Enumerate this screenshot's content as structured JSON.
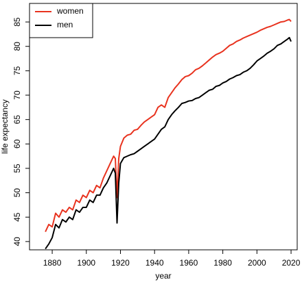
{
  "chart_data": {
    "type": "line",
    "x_label": "year",
    "y_label": "life expectancy",
    "x": [
      1876,
      1878,
      1880,
      1882,
      1884,
      1886,
      1888,
      1890,
      1892,
      1894,
      1896,
      1898,
      1900,
      1902,
      1904,
      1906,
      1908,
      1910,
      1912,
      1914,
      1916,
      1917,
      1918,
      1919,
      1920,
      1922,
      1924,
      1926,
      1928,
      1930,
      1932,
      1934,
      1936,
      1938,
      1940,
      1942,
      1944,
      1946,
      1948,
      1950,
      1952,
      1954,
      1956,
      1958,
      1960,
      1962,
      1964,
      1966,
      1968,
      1970,
      1972,
      1974,
      1976,
      1978,
      1980,
      1982,
      1984,
      1986,
      1988,
      1990,
      1992,
      1994,
      1996,
      1998,
      2000,
      2002,
      2004,
      2006,
      2008,
      2010,
      2012,
      2014,
      2016,
      2018,
      2019,
      2020
    ],
    "series": [
      {
        "name": "women",
        "color": "#e8321e",
        "values": [
          42.0,
          43.5,
          43.0,
          45.8,
          45.0,
          46.5,
          46.0,
          47.0,
          46.5,
          48.5,
          48.0,
          49.5,
          49.0,
          50.5,
          50.0,
          51.5,
          51.0,
          53.0,
          54.5,
          56.0,
          57.5,
          57.0,
          49.0,
          57.0,
          59.5,
          61.2,
          61.8,
          62.0,
          62.8,
          63.0,
          63.8,
          64.5,
          65.0,
          65.5,
          66.0,
          67.5,
          68.0,
          67.5,
          69.5,
          70.5,
          71.5,
          72.3,
          73.2,
          73.8,
          74.0,
          74.5,
          75.2,
          75.5,
          76.0,
          76.6,
          77.2,
          77.8,
          78.3,
          78.6,
          79.0,
          79.6,
          80.2,
          80.5,
          81.0,
          81.3,
          81.7,
          82.0,
          82.3,
          82.6,
          82.9,
          83.3,
          83.6,
          83.9,
          84.1,
          84.4,
          84.7,
          85.0,
          85.1,
          85.4,
          85.5,
          85.1
        ]
      },
      {
        "name": "men",
        "color": "#000000",
        "values": [
          38.5,
          39.5,
          40.8,
          43.5,
          42.8,
          44.5,
          44.0,
          45.0,
          44.5,
          46.5,
          46.0,
          47.0,
          47.0,
          48.5,
          48.0,
          49.5,
          49.5,
          51.0,
          52.0,
          53.5,
          55.0,
          54.0,
          43.8,
          52.0,
          56.0,
          57.2,
          57.5,
          57.8,
          58.0,
          58.5,
          59.0,
          59.5,
          60.0,
          60.5,
          61.0,
          62.0,
          63.0,
          63.5,
          65.0,
          66.0,
          66.8,
          67.5,
          68.3,
          68.5,
          68.8,
          68.9,
          69.3,
          69.5,
          70.0,
          70.5,
          71.0,
          71.2,
          71.8,
          72.0,
          72.5,
          72.8,
          73.3,
          73.6,
          74.0,
          74.2,
          74.7,
          75.0,
          75.5,
          76.2,
          77.0,
          77.5,
          78.0,
          78.6,
          79.0,
          79.5,
          80.2,
          80.5,
          81.0,
          81.5,
          81.8,
          81.0
        ]
      }
    ],
    "xlim": [
      1866.7,
      2023.6
    ],
    "ylim": [
      38.3,
      88.8
    ],
    "xticks": [
      1880,
      1900,
      1920,
      1940,
      1960,
      1980,
      2000,
      2020
    ],
    "yticks": [
      40,
      45,
      50,
      55,
      60,
      65,
      70,
      75,
      80,
      85
    ],
    "legend": "top-left"
  }
}
